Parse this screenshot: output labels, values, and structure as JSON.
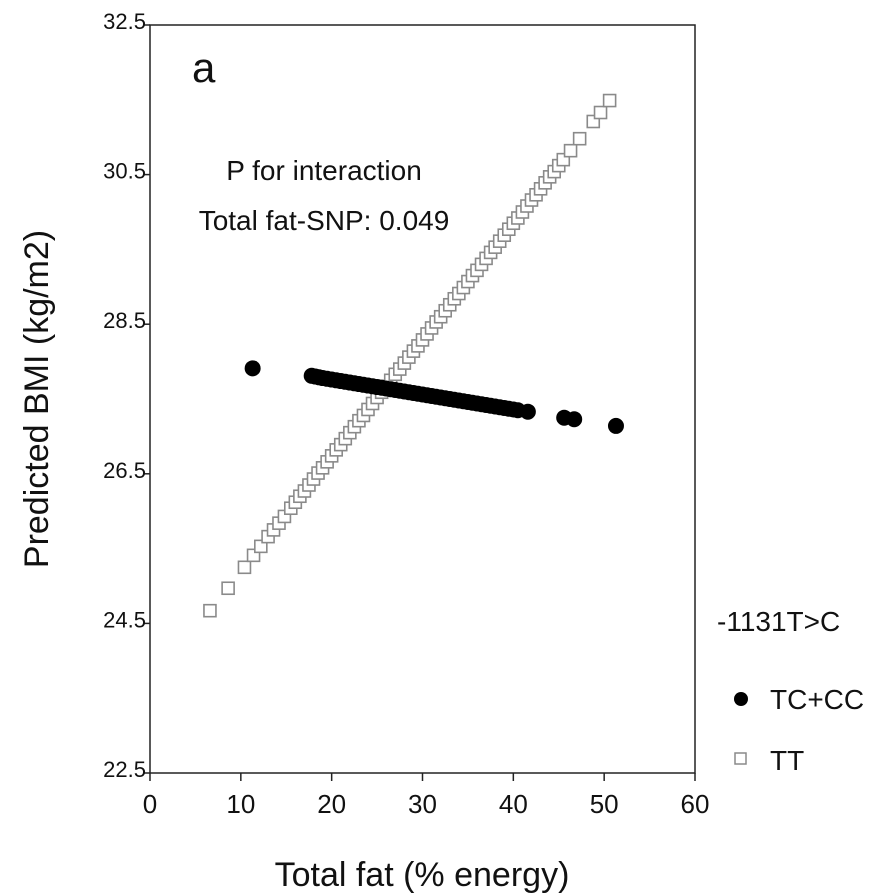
{
  "chart_data": {
    "type": "scatter",
    "panel_label": "a",
    "xlabel": "Total fat (% energy)",
    "ylabel": "Predicted BMI (kg/m2)",
    "xlim": [
      0,
      60
    ],
    "ylim": [
      22.5,
      32.5
    ],
    "x_ticks": [
      "0",
      "10",
      "20",
      "30",
      "40",
      "50",
      "60"
    ],
    "x_tick_values": [
      0,
      10,
      20,
      30,
      40,
      50,
      60
    ],
    "y_ticks": [
      "22.5",
      "24.5",
      "26.5",
      "28.5",
      "30.5",
      "32.5"
    ],
    "y_tick_values": [
      22.5,
      24.5,
      26.5,
      28.5,
      30.5,
      32.5
    ],
    "grid": false,
    "annotations": [
      "P for interaction",
      "Total fat-SNP: 0.049"
    ],
    "legend": {
      "title": "-1131T>C",
      "placement": "right-outside",
      "entries": [
        "TC+CC",
        "TT"
      ]
    },
    "series": [
      {
        "name": "TC+CC",
        "marker": "filled-circle",
        "color": "#000000",
        "x": [
          11.3,
          17.8,
          18.2,
          18.6,
          19.0,
          19.5,
          20.0,
          20.5,
          21.0,
          21.5,
          22.0,
          22.5,
          23.0,
          23.5,
          24.0,
          24.5,
          25.0,
          25.5,
          26.0,
          26.5,
          27.0,
          27.5,
          28.0,
          28.5,
          29.0,
          29.5,
          30.0,
          30.5,
          31.0,
          31.5,
          32.0,
          32.5,
          33.0,
          33.5,
          34.0,
          34.5,
          35.0,
          35.5,
          36.0,
          36.5,
          37.0,
          37.5,
          38.0,
          38.5,
          39.0,
          39.5,
          40.0,
          40.5,
          41.6,
          45.6,
          46.7,
          51.3
        ],
        "y": [
          27.91,
          27.81,
          27.8,
          27.79,
          27.78,
          27.77,
          27.76,
          27.75,
          27.74,
          27.73,
          27.72,
          27.71,
          27.7,
          27.69,
          27.68,
          27.67,
          27.66,
          27.65,
          27.64,
          27.63,
          27.62,
          27.61,
          27.6,
          27.59,
          27.58,
          27.57,
          27.56,
          27.55,
          27.54,
          27.53,
          27.52,
          27.51,
          27.5,
          27.49,
          27.48,
          27.47,
          27.46,
          27.45,
          27.44,
          27.43,
          27.42,
          27.41,
          27.4,
          27.39,
          27.38,
          27.37,
          27.36,
          27.35,
          27.33,
          27.25,
          27.23,
          27.14
        ]
      },
      {
        "name": "TT",
        "marker": "open-square",
        "color": "#8a8a8a",
        "x": [
          6.6,
          8.6,
          10.4,
          11.4,
          12.2,
          13.0,
          13.6,
          14.2,
          14.8,
          15.5,
          16.0,
          16.5,
          17.0,
          17.5,
          18.0,
          18.5,
          19.0,
          19.5,
          20.0,
          20.5,
          21.0,
          21.5,
          22.0,
          22.5,
          23.0,
          23.5,
          24.0,
          24.5,
          25.0,
          25.5,
          26.0,
          26.5,
          27.0,
          27.5,
          28.0,
          28.5,
          29.0,
          29.5,
          30.0,
          30.5,
          31.0,
          31.5,
          32.0,
          32.5,
          33.0,
          33.5,
          34.0,
          34.5,
          35.0,
          35.5,
          36.0,
          36.5,
          37.0,
          37.5,
          38.0,
          38.5,
          39.0,
          39.5,
          40.0,
          40.5,
          41.0,
          41.5,
          42.0,
          42.5,
          43.0,
          43.5,
          44.0,
          44.5,
          45.0,
          45.5,
          46.3,
          47.3,
          48.8,
          49.6,
          50.6
        ],
        "y": [
          24.67,
          24.97,
          25.25,
          25.41,
          25.53,
          25.66,
          25.75,
          25.84,
          25.93,
          26.04,
          26.12,
          26.2,
          26.27,
          26.35,
          26.43,
          26.51,
          26.58,
          26.66,
          26.74,
          26.82,
          26.89,
          26.97,
          27.05,
          27.13,
          27.21,
          27.28,
          27.36,
          27.44,
          27.52,
          27.59,
          27.67,
          27.75,
          27.83,
          27.9,
          27.98,
          28.06,
          28.14,
          28.21,
          28.29,
          28.37,
          28.45,
          28.53,
          28.6,
          28.68,
          28.76,
          28.84,
          28.91,
          28.99,
          29.07,
          29.15,
          29.22,
          29.3,
          29.38,
          29.46,
          29.53,
          29.61,
          29.69,
          29.77,
          29.85,
          29.92,
          30.0,
          30.08,
          30.16,
          30.23,
          30.31,
          30.39,
          30.47,
          30.54,
          30.62,
          30.7,
          30.82,
          30.98,
          31.21,
          31.33,
          31.49
        ]
      }
    ]
  }
}
